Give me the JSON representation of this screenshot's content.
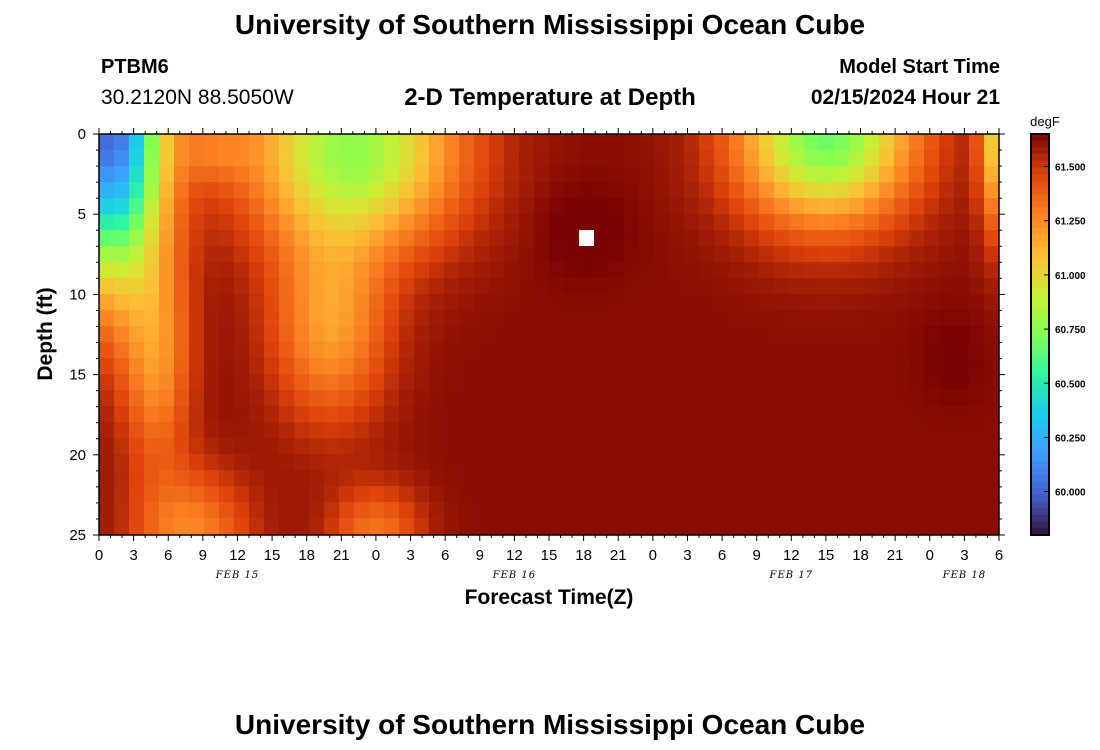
{
  "header": {
    "title": "University of Southern Mississippi Ocean Cube",
    "station_id": "PTBM6",
    "coordinates": "30.2120N  88.5050W",
    "model_start_label": "Model Start Time",
    "model_start_value": "02/15/2024 Hour 21"
  },
  "footer": {
    "title": "University of Southern Mississippi Ocean Cube"
  },
  "colors": {
    "background": "#ffffff",
    "text": "#000000",
    "missing": "#ffffff"
  },
  "chart_data": {
    "type": "heatmap",
    "title": "2-D Temperature at Depth",
    "xlabel": "Forecast Time(Z)",
    "ylabel": "Depth (ft)",
    "x_unit": "hours since 02/15 00Z",
    "xlim": [
      0,
      78
    ],
    "ylim": [
      0,
      25
    ],
    "y_inverted": true,
    "x_ticks": [
      0,
      3,
      6,
      9,
      12,
      15,
      18,
      21,
      24,
      27,
      30,
      33,
      36,
      39,
      42,
      45,
      48,
      51,
      54,
      57,
      60,
      63,
      66,
      69,
      72,
      75,
      78
    ],
    "x_tick_labels": [
      "0",
      "3",
      "6",
      "9",
      "12",
      "15",
      "18",
      "21",
      "0",
      "3",
      "6",
      "9",
      "12",
      "15",
      "18",
      "21",
      "0",
      "3",
      "6",
      "9",
      "12",
      "15",
      "18",
      "21",
      "0",
      "3",
      "6"
    ],
    "y_ticks": [
      0,
      5,
      10,
      15,
      20,
      25
    ],
    "y_tick_labels": [
      "0",
      "5",
      "10",
      "15",
      "20",
      "25"
    ],
    "date_labels": [
      {
        "text": "FEB 15",
        "x": 12
      },
      {
        "text": "FEB 16",
        "x": 36
      },
      {
        "text": "FEB 17",
        "x": 60
      },
      {
        "text": "FEB 18",
        "x": 75
      }
    ],
    "colorbar": {
      "unit": "degF",
      "range": [
        59.8,
        61.65
      ],
      "ticks": [
        60.0,
        60.25,
        60.5,
        60.75,
        61.0,
        61.25,
        61.5
      ],
      "tick_labels": [
        "60.000",
        "60.250",
        "60.500",
        "60.750",
        "61.000",
        "61.250",
        "61.500"
      ]
    },
    "missing_cell": {
      "time": 42.5,
      "depth": 6
    }
  }
}
